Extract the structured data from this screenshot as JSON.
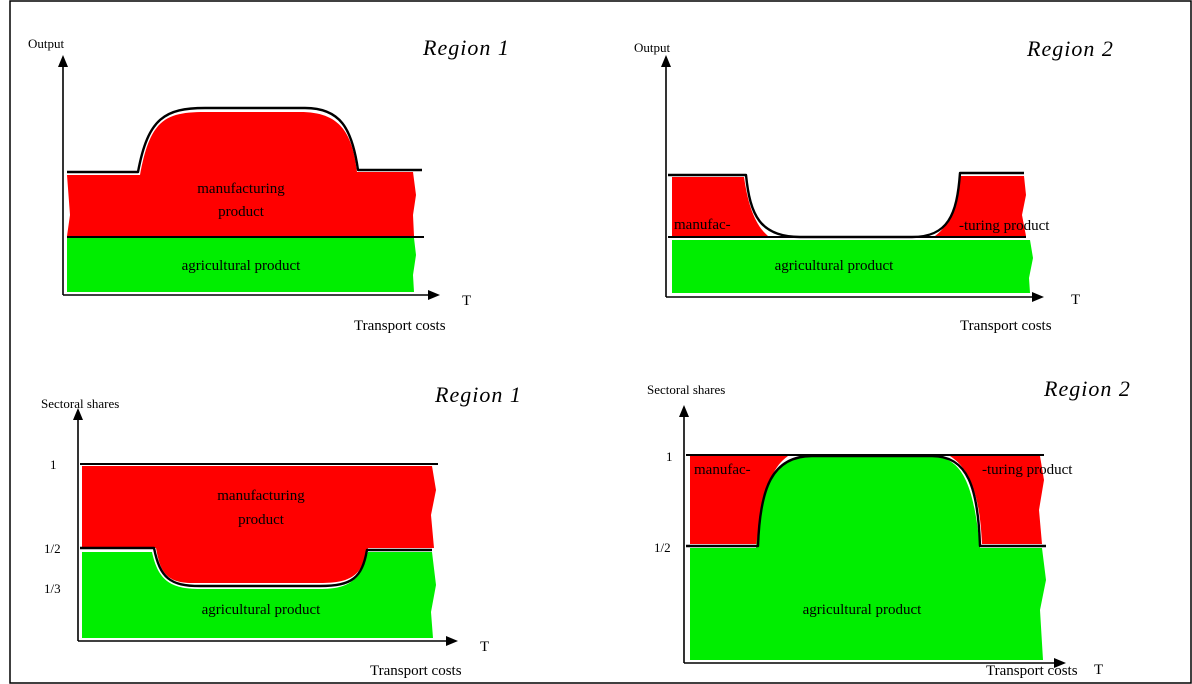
{
  "colors": {
    "manufacturing": "#ff0000",
    "agricultural": "#00ee00",
    "axis": "#000000"
  },
  "panels": {
    "top_left": {
      "title": "Region 1",
      "y_axis_label": "Output",
      "x_axis_symbol": "T",
      "x_axis_label": "Transport costs",
      "manufacturing_label_1": "manufacturing",
      "manufacturing_label_2": "product",
      "agricultural_label": "agricultural product"
    },
    "top_right": {
      "title": "Region 2",
      "y_axis_label": "Output",
      "x_axis_symbol": "T",
      "x_axis_label": "Transport costs",
      "manufacturing_left_label": "manufac-",
      "manufacturing_right_label": "-turing product",
      "agricultural_label": "agricultural product"
    },
    "bottom_left": {
      "title": "Region 1",
      "y_axis_label": "Sectoral shares",
      "x_axis_symbol": "T",
      "x_axis_label": "Transport costs",
      "tick_1": "1",
      "tick_half": "1/2",
      "tick_third": "1/3",
      "manufacturing_label_1": "manufacturing",
      "manufacturing_label_2": "product",
      "agricultural_label": "agricultural product"
    },
    "bottom_right": {
      "title": "Region 2",
      "y_axis_label": "Sectoral shares",
      "x_axis_symbol": "T",
      "x_axis_label": "Transport costs",
      "tick_1": "1",
      "tick_half": "1/2",
      "manufacturing_left_label": "manufac-",
      "manufacturing_right_label": "-turing product",
      "agricultural_label": "agricultural product"
    }
  }
}
